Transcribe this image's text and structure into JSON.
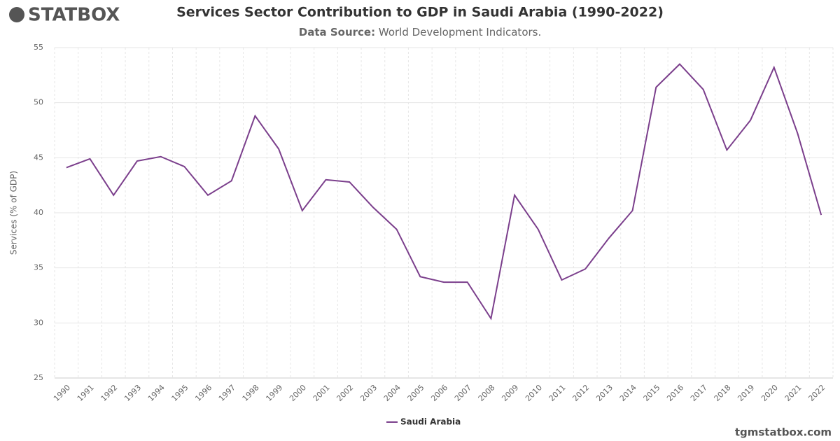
{
  "logo": "STATBOX",
  "footer": "tgmstatbox.com",
  "chart_data": {
    "type": "line",
    "title": "Services Sector Contribution to GDP in Saudi Arabia (1990-2022)",
    "subtitle_label": "Data Source:",
    "subtitle": "World Development Indicators.",
    "y_label": "Services (% of GDP)",
    "categories": [
      "1990",
      "1991",
      "1992",
      "1993",
      "1994",
      "1995",
      "1996",
      "1997",
      "1998",
      "1999",
      "2000",
      "2001",
      "2002",
      "2003",
      "2004",
      "2005",
      "2006",
      "2007",
      "2008",
      "2009",
      "2010",
      "2011",
      "2012",
      "2013",
      "2014",
      "2015",
      "2016",
      "2017",
      "2018",
      "2019",
      "2020",
      "2021",
      "2022"
    ],
    "series": [
      {
        "name": "Saudi Arabia",
        "color": "#7b3f8c",
        "values": [
          44.1,
          44.9,
          41.6,
          44.7,
          45.1,
          44.2,
          41.6,
          42.9,
          48.8,
          45.8,
          40.2,
          43.0,
          42.8,
          40.5,
          38.5,
          34.2,
          33.7,
          33.7,
          30.4,
          41.6,
          38.5,
          33.9,
          34.9,
          37.7,
          40.2,
          51.4,
          53.5,
          51.2,
          45.7,
          48.4,
          53.2,
          47.2,
          39.8
        ]
      }
    ],
    "ylim": [
      25,
      55
    ],
    "yticks": [
      25,
      30,
      35,
      40,
      45,
      50,
      55
    ],
    "grid": true,
    "legend": "bottom"
  }
}
